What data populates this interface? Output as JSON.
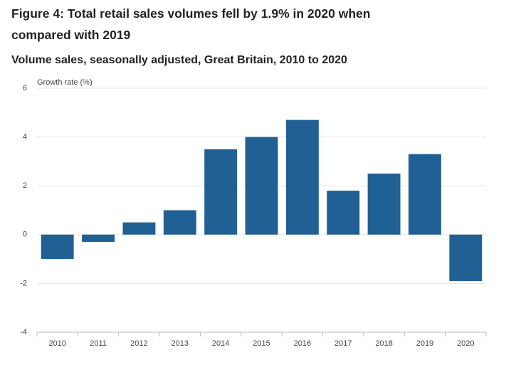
{
  "chart_data": {
    "type": "bar",
    "title": "Figure 4: Total retail sales volumes fell by 1.9% in 2020 when compared with 2019",
    "subtitle": "Volume sales, seasonally adjusted, Great Britain, 2010 to 2020",
    "y_label": "Growth rate (%)",
    "categories": [
      "2010",
      "2011",
      "2012",
      "2013",
      "2014",
      "2015",
      "2016",
      "2017",
      "2018",
      "2019",
      "2020"
    ],
    "values": [
      -1.0,
      -0.3,
      0.5,
      1.0,
      3.5,
      4.0,
      4.7,
      1.8,
      2.5,
      3.3,
      -1.9
    ],
    "color": "#206095",
    "ylim": [
      -4,
      6
    ],
    "yticks": [
      -4,
      -2,
      0,
      2,
      4,
      6
    ],
    "grid": true
  }
}
